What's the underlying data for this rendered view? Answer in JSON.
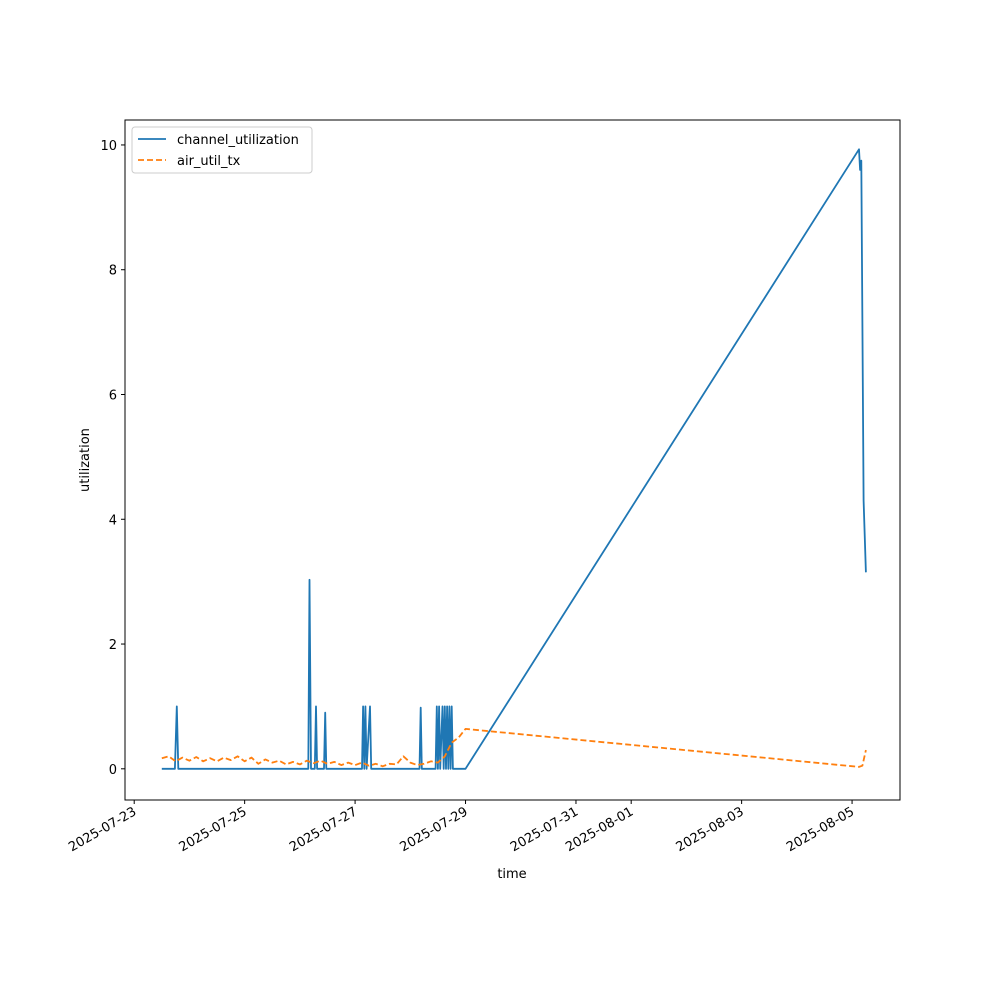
{
  "chart_data": {
    "type": "line",
    "title": "",
    "xlabel": "time",
    "ylabel": "utilization",
    "xlim": [
      "2025-07-22T20:00",
      "2025-08-05T20:50"
    ],
    "ylim": [
      -0.5,
      10.4
    ],
    "x_tick_labels": [
      "2025-07-23",
      "2025-07-25",
      "2025-07-27",
      "2025-07-29",
      "2025-07-31",
      "2025-08-01",
      "2025-08-03",
      "2025-08-05"
    ],
    "x_ticks": [
      "2025-07-23",
      "2025-07-25",
      "2025-07-27",
      "2025-07-29",
      "2025-07-31",
      "2025-08-01",
      "2025-08-03",
      "2025-08-05"
    ],
    "y_ticks": [
      0,
      2,
      4,
      6,
      8,
      10
    ],
    "grid": false,
    "legend": "top-left",
    "series": [
      {
        "name": "channel_utilization",
        "color": "#1f77b4",
        "style": "solid",
        "points": [
          [
            "2025-07-23T12:00",
            0
          ],
          [
            "2025-07-23T17:40",
            0
          ],
          [
            "2025-07-23T18:30",
            1.0
          ],
          [
            "2025-07-23T19:10",
            0
          ],
          [
            "2025-07-26T03:40",
            0
          ],
          [
            "2025-07-26T04:10",
            3.03
          ],
          [
            "2025-07-26T04:50",
            0
          ],
          [
            "2025-07-26T06:30",
            0
          ],
          [
            "2025-07-26T07:00",
            1.0
          ],
          [
            "2025-07-26T07:30",
            0
          ],
          [
            "2025-07-26T10:30",
            0
          ],
          [
            "2025-07-26T11:00",
            0.9
          ],
          [
            "2025-07-26T11:30",
            0
          ],
          [
            "2025-07-27T03:00",
            0
          ],
          [
            "2025-07-27T03:30",
            1.0
          ],
          [
            "2025-07-27T04:00",
            0
          ],
          [
            "2025-07-27T04:30",
            1.0
          ],
          [
            "2025-07-27T05:00",
            0
          ],
          [
            "2025-07-27T06:30",
            1.0
          ],
          [
            "2025-07-27T07:00",
            0
          ],
          [
            "2025-07-28T04:00",
            0
          ],
          [
            "2025-07-28T04:30",
            0.98
          ],
          [
            "2025-07-28T05:00",
            0
          ],
          [
            "2025-07-28T11:00",
            0
          ],
          [
            "2025-07-28T11:30",
            1.0
          ],
          [
            "2025-07-28T12:00",
            0
          ],
          [
            "2025-07-28T12:30",
            1.0
          ],
          [
            "2025-07-28T13:00",
            0
          ],
          [
            "2025-07-28T14:00",
            1.0
          ],
          [
            "2025-07-28T14:30",
            0
          ],
          [
            "2025-07-28T15:00",
            1.0
          ],
          [
            "2025-07-28T15:30",
            0
          ],
          [
            "2025-07-28T16:00",
            1.0
          ],
          [
            "2025-07-28T16:30",
            0
          ],
          [
            "2025-07-28T17:00",
            1.0
          ],
          [
            "2025-07-28T17:30",
            0
          ],
          [
            "2025-07-28T18:00",
            1.0
          ],
          [
            "2025-07-28T18:30",
            0
          ],
          [
            "2025-07-29T00:00",
            0
          ],
          [
            "2025-08-05T03:00",
            9.93
          ],
          [
            "2025-08-05T03:30",
            9.6
          ],
          [
            "2025-08-05T04:00",
            9.75
          ],
          [
            "2025-08-05T05:00",
            4.3
          ],
          [
            "2025-08-05T06:00",
            3.15
          ]
        ]
      },
      {
        "name": "air_util_tx",
        "color": "#ff7f0e",
        "style": "dashed",
        "points": [
          [
            "2025-07-23T12:00",
            0.17
          ],
          [
            "2025-07-23T15:00",
            0.2
          ],
          [
            "2025-07-23T18:00",
            0.12
          ],
          [
            "2025-07-23T21:00",
            0.18
          ],
          [
            "2025-07-24T00:00",
            0.13
          ],
          [
            "2025-07-24T03:00",
            0.19
          ],
          [
            "2025-07-24T06:00",
            0.12
          ],
          [
            "2025-07-24T09:00",
            0.17
          ],
          [
            "2025-07-24T12:00",
            0.12
          ],
          [
            "2025-07-24T15:00",
            0.18
          ],
          [
            "2025-07-24T18:00",
            0.14
          ],
          [
            "2025-07-24T21:00",
            0.2
          ],
          [
            "2025-07-25T00:00",
            0.12
          ],
          [
            "2025-07-25T03:00",
            0.18
          ],
          [
            "2025-07-25T06:00",
            0.08
          ],
          [
            "2025-07-25T09:00",
            0.15
          ],
          [
            "2025-07-25T12:00",
            0.1
          ],
          [
            "2025-07-25T15:00",
            0.13
          ],
          [
            "2025-07-25T18:00",
            0.07
          ],
          [
            "2025-07-25T21:00",
            0.11
          ],
          [
            "2025-07-26T00:00",
            0.07
          ],
          [
            "2025-07-26T03:00",
            0.13
          ],
          [
            "2025-07-26T06:00",
            0.09
          ],
          [
            "2025-07-26T09:00",
            0.13
          ],
          [
            "2025-07-26T12:00",
            0.08
          ],
          [
            "2025-07-26T15:00",
            0.11
          ],
          [
            "2025-07-26T18:00",
            0.06
          ],
          [
            "2025-07-26T21:00",
            0.1
          ],
          [
            "2025-07-27T00:00",
            0.06
          ],
          [
            "2025-07-27T03:00",
            0.1
          ],
          [
            "2025-07-27T06:00",
            0.05
          ],
          [
            "2025-07-27T09:00",
            0.08
          ],
          [
            "2025-07-27T12:00",
            0.04
          ],
          [
            "2025-07-27T15:00",
            0.08
          ],
          [
            "2025-07-27T18:00",
            0.07
          ],
          [
            "2025-07-27T21:00",
            0.2
          ],
          [
            "2025-07-28T00:00",
            0.1
          ],
          [
            "2025-07-28T03:00",
            0.06
          ],
          [
            "2025-07-28T06:00",
            0.08
          ],
          [
            "2025-07-28T09:00",
            0.12
          ],
          [
            "2025-07-28T12:00",
            0.1
          ],
          [
            "2025-07-28T15:00",
            0.2
          ],
          [
            "2025-07-28T18:00",
            0.42
          ],
          [
            "2025-07-28T21:00",
            0.5
          ],
          [
            "2025-07-29T00:00",
            0.64
          ],
          [
            "2025-08-05T03:00",
            0.03
          ],
          [
            "2025-08-05T04:30",
            0.05
          ],
          [
            "2025-08-05T06:00",
            0.3
          ]
        ]
      }
    ]
  }
}
